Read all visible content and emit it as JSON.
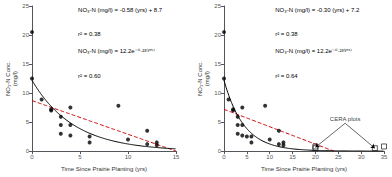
{
  "chart_data": [
    {
      "type": "scatter",
      "xlabel": "Time Since Prairie Planting (yrs)",
      "ylabel": "NO₃-N Conc.\n(mg/l)",
      "series": [
        {
          "x": [
            0,
            0,
            1,
            2,
            2,
            3,
            3,
            3,
            4,
            4,
            4,
            6,
            6,
            9,
            10,
            12,
            12,
            13,
            13
          ],
          "values": [
            20.5,
            12.5,
            8.9,
            7.2,
            7.0,
            5.9,
            4.5,
            3.0,
            7.5,
            4.5,
            2.7,
            2.5,
            1.5,
            7.8,
            2.0,
            3.5,
            1.2,
            1.5,
            1.0
          ],
          "color": "#000000",
          "marker": "circle"
        }
      ],
      "fits": [
        {
          "type": "linear",
          "slope": -0.58,
          "intercept": 8.7,
          "color": "#cc0000",
          "line_style": "dashed"
        },
        {
          "type": "exponential",
          "A": 12.2,
          "b": 0.23,
          "color": "#000000",
          "line_style": "solid"
        }
      ],
      "xlim": [
        0,
        15
      ],
      "ylim": [
        0,
        25
      ],
      "xticks": [
        0,
        5,
        10,
        15
      ],
      "yticks": [
        0,
        5,
        10,
        15,
        20,
        25
      ],
      "grid": false,
      "annotations": [
        {
          "text": "NO₃-N (mg/l) = -0.58 (yrs) + 8.7"
        },
        {
          "text": "r² = 0.38"
        },
        {
          "text": "NO₃-N (mg/l) = 12.2e⁻⁰·²³⁽ʸʳˢ⁾"
        },
        {
          "text": "r² = 0.60"
        }
      ]
    },
    {
      "type": "scatter",
      "xlabel": "Time Since Prairie Planting (yrs)",
      "ylabel": "NO₃-N Conc.\n(mg/l)",
      "series": [
        {
          "x": [
            0,
            0,
            1,
            2,
            2,
            3,
            3,
            3,
            4,
            4,
            4,
            5,
            6,
            6,
            9,
            10,
            12,
            12,
            13,
            13
          ],
          "values": [
            20.5,
            12.5,
            8.9,
            7.2,
            7.0,
            5.9,
            4.5,
            3.0,
            7.5,
            4.5,
            2.7,
            2.5,
            2.5,
            1.5,
            7.8,
            2.0,
            3.5,
            1.2,
            1.5,
            1.0
          ],
          "color": "#000000",
          "marker": "circle"
        },
        {
          "x": [
            20,
            20,
            33,
            35
          ],
          "values": [
            0.8,
            0.5,
            0.5,
            0.8
          ],
          "color": "#000000",
          "marker": "open_square"
        }
      ],
      "fits": [
        {
          "type": "linear",
          "slope": -0.3,
          "intercept": 7.2,
          "color": "#cc0000",
          "line_style": "dashed"
        },
        {
          "type": "exponential",
          "A": 12.2,
          "b": 0.23,
          "color": "#000000",
          "line_style": "solid"
        }
      ],
      "xlim": [
        0,
        35
      ],
      "ylim": [
        0,
        25
      ],
      "xticks": [
        0,
        5,
        10,
        15,
        20,
        25,
        30,
        35
      ],
      "yticks": [
        0,
        5,
        10,
        15,
        20,
        25
      ],
      "grid": false,
      "annotations": [
        {
          "text": "NO₃-N (mg/l) = -0.30 (yrs) + 7.2"
        },
        {
          "text": "r² = 0.38"
        },
        {
          "text": "NO₃-N (mg/l) = 12.2e⁻⁰·²³⁽ʸʳˢ⁾"
        },
        {
          "text": "r² = 0.64"
        },
        {
          "text": "CERA plots",
          "x": 26.5,
          "y": 4.8,
          "arrows": [
            {
              "x": 33,
              "y": 0.5
            },
            {
              "x": 20,
              "y": 0.65
            }
          ]
        }
      ]
    }
  ]
}
